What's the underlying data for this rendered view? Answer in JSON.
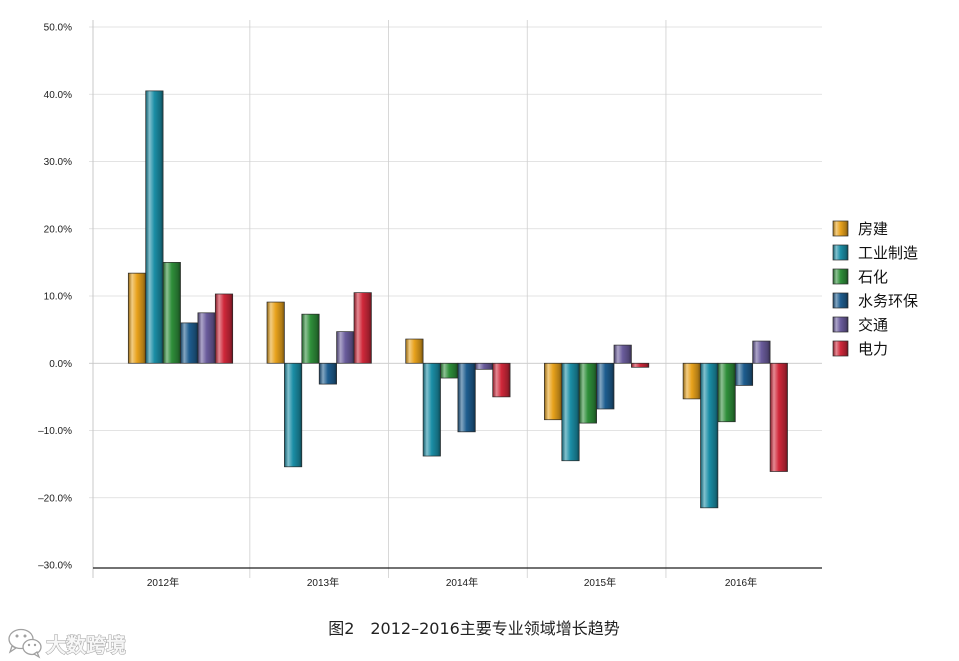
{
  "chart_data": {
    "type": "bar",
    "title": "图2　2012–2016主要专业领域增长趋势",
    "categories": [
      "2012年",
      "2013年",
      "2014年",
      "2015年",
      "2016年"
    ],
    "series": [
      {
        "name": "房建",
        "color": "#E8A21C",
        "values": [
          13.4,
          9.1,
          3.6,
          -8.4,
          -5.3
        ]
      },
      {
        "name": "工业制造",
        "color": "#1B8EA6",
        "values": [
          40.5,
          -15.4,
          -13.8,
          -14.5,
          -21.5
        ]
      },
      {
        "name": "石化",
        "color": "#2F8F3A",
        "values": [
          15.0,
          7.3,
          -2.2,
          -8.9,
          -8.7
        ]
      },
      {
        "name": "水务环保",
        "color": "#1E5D8F",
        "values": [
          6.0,
          -3.1,
          -10.2,
          -6.8,
          -3.3
        ]
      },
      {
        "name": "交通",
        "color": "#6A5C9C",
        "values": [
          7.5,
          4.7,
          -0.9,
          2.7,
          3.3
        ]
      },
      {
        "name": "电力",
        "color": "#D0283A",
        "values": [
          10.3,
          10.5,
          -5.0,
          -0.6,
          -16.1
        ]
      }
    ],
    "ylim": [
      -30,
      50
    ],
    "yticks": [
      50,
      40,
      30,
      20,
      10,
      0,
      -10,
      -20,
      -30
    ],
    "ytick_labels": [
      "50.0%",
      "40.0%",
      "30.0%",
      "20.0%",
      "10.0%",
      "0.0%",
      "–10.0%",
      "–20.0%",
      "–30.0%"
    ],
    "grid": true,
    "legend_position": "right"
  },
  "watermark": {
    "text": "大数跨境",
    "icon": "chat-bubble-icon"
  }
}
